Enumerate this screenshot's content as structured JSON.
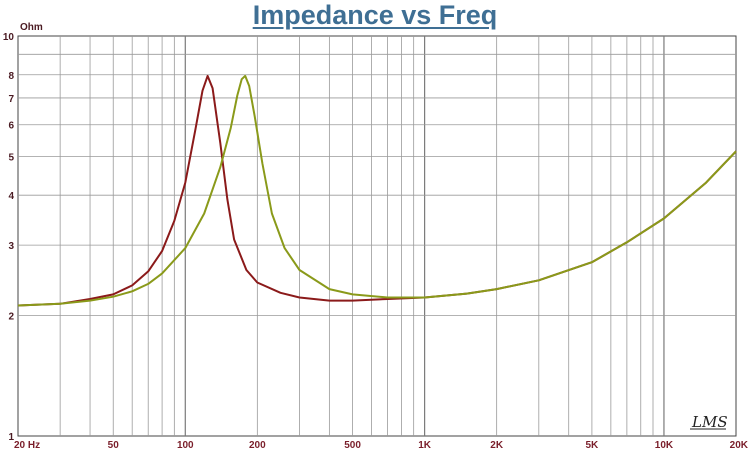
{
  "chart_data": {
    "type": "line",
    "title": "Impedance vs Freq",
    "ylabel": "Ohm",
    "xscale": "log",
    "yscale": "log",
    "xlim": [
      20,
      20000
    ],
    "ylim": [
      1,
      10
    ],
    "grid": true,
    "x_ticks": [
      {
        "v": 20,
        "label": "20  Hz"
      },
      {
        "v": 50,
        "label": "50"
      },
      {
        "v": 100,
        "label": "100"
      },
      {
        "v": 200,
        "label": "200"
      },
      {
        "v": 500,
        "label": "500"
      },
      {
        "v": 1000,
        "label": "1K"
      },
      {
        "v": 2000,
        "label": "2K"
      },
      {
        "v": 5000,
        "label": "5K"
      },
      {
        "v": 10000,
        "label": "10K"
      },
      {
        "v": 20000,
        "label": "20K"
      }
    ],
    "y_ticks": [
      {
        "v": 1,
        "label": "1"
      },
      {
        "v": 2,
        "label": "2"
      },
      {
        "v": 3,
        "label": "3"
      },
      {
        "v": 4,
        "label": "4"
      },
      {
        "v": 5,
        "label": "5"
      },
      {
        "v": 6,
        "label": "6"
      },
      {
        "v": 7,
        "label": "7"
      },
      {
        "v": 8,
        "label": "8"
      },
      {
        "v": 10,
        "label": "10"
      }
    ],
    "series": [
      {
        "color": "#8b1a1a",
        "points": [
          [
            20,
            2.12
          ],
          [
            30,
            2.14
          ],
          [
            40,
            2.2
          ],
          [
            50,
            2.26
          ],
          [
            60,
            2.38
          ],
          [
            70,
            2.58
          ],
          [
            80,
            2.9
          ],
          [
            90,
            3.45
          ],
          [
            100,
            4.3
          ],
          [
            110,
            5.8
          ],
          [
            118,
            7.3
          ],
          [
            124,
            7.95
          ],
          [
            130,
            7.4
          ],
          [
            140,
            5.4
          ],
          [
            150,
            3.9
          ],
          [
            160,
            3.1
          ],
          [
            180,
            2.6
          ],
          [
            200,
            2.42
          ],
          [
            250,
            2.28
          ],
          [
            300,
            2.22
          ],
          [
            400,
            2.18
          ],
          [
            500,
            2.18
          ],
          [
            700,
            2.2
          ],
          [
            1000,
            2.22
          ],
          [
            1500,
            2.27
          ],
          [
            2000,
            2.33
          ],
          [
            3000,
            2.45
          ],
          [
            5000,
            2.72
          ],
          [
            7000,
            3.05
          ],
          [
            10000,
            3.5
          ],
          [
            15000,
            4.3
          ],
          [
            20000,
            5.15
          ]
        ]
      },
      {
        "color": "#8a9a1a",
        "points": [
          [
            20,
            2.12
          ],
          [
            30,
            2.14
          ],
          [
            40,
            2.18
          ],
          [
            50,
            2.23
          ],
          [
            60,
            2.3
          ],
          [
            70,
            2.4
          ],
          [
            80,
            2.55
          ],
          [
            100,
            2.95
          ],
          [
            120,
            3.6
          ],
          [
            140,
            4.7
          ],
          [
            155,
            5.9
          ],
          [
            165,
            7.1
          ],
          [
            172,
            7.8
          ],
          [
            178,
            7.95
          ],
          [
            185,
            7.5
          ],
          [
            195,
            6.3
          ],
          [
            210,
            4.8
          ],
          [
            230,
            3.6
          ],
          [
            260,
            2.95
          ],
          [
            300,
            2.6
          ],
          [
            400,
            2.33
          ],
          [
            500,
            2.26
          ],
          [
            700,
            2.22
          ],
          [
            1000,
            2.22
          ],
          [
            1500,
            2.27
          ],
          [
            2000,
            2.33
          ],
          [
            3000,
            2.45
          ],
          [
            5000,
            2.72
          ],
          [
            7000,
            3.05
          ],
          [
            10000,
            3.5
          ],
          [
            15000,
            4.3
          ],
          [
            20000,
            5.15
          ]
        ]
      }
    ],
    "watermark_logo": "LMS"
  }
}
